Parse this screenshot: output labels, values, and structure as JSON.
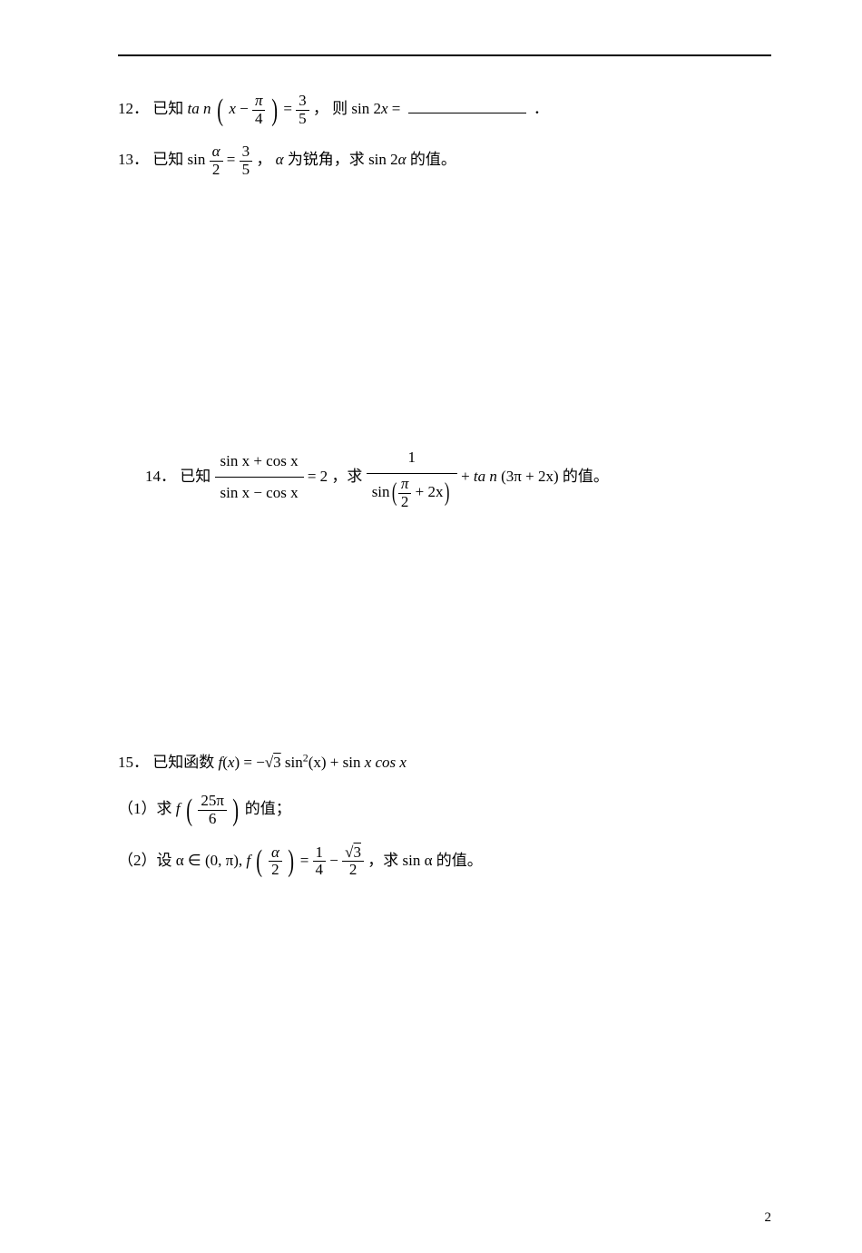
{
  "page": {
    "number": "2",
    "rule_color": "#000000",
    "background": "#ffffff"
  },
  "p12": {
    "num": "12．",
    "known": "已知",
    "tan": "ta n",
    "x": "x",
    "minus": "−",
    "pi": "π",
    "four": "4",
    "eq": "=",
    "three": "3",
    "five": "5",
    "comma": "，",
    "then": "则",
    "sin2x": "sin 2",
    "xv": "x",
    "eq2": "=",
    "period": "．"
  },
  "p13": {
    "num": "13．",
    "known": "已知",
    "sin": "sin",
    "alpha": "α",
    "two": "2",
    "eq": "=",
    "three": "3",
    "five": "5",
    "comma": "，",
    "alpha_is": "α",
    "acute": " 为锐角，求",
    "sin2a": "sin 2",
    "alpha2": "α",
    "value": " 的值。"
  },
  "p14": {
    "num": "14．",
    "known": "已知 ",
    "numr": "sin x + cos x",
    "denr": "sin x − cos x",
    "eq": "= 2 ，求 ",
    "one": "1",
    "sin": "sin",
    "pi": "π",
    "two": "2",
    "plus2x": " + 2x",
    "plus": " + ",
    "tan": "ta n",
    "paren3pi": "(3π + 2x)",
    "value": "的值。"
  },
  "p15": {
    "num": "15．",
    "known": "已知函数 ",
    "f": "f",
    "x": "x",
    "eq": " = −",
    "sqrt3": "3",
    "sin2": " sin",
    "sq": "2",
    "parenx": "(x)",
    "plus": " + sin ",
    "xcosx": "x cos x",
    "part1_label": "（1）求 ",
    "f1": "f",
    "tw5pi": "25π",
    "six": "6",
    "part1_end": "的值；",
    "part2_label": "（2）设 ",
    "alpha_in": "α ∈ (0, π), ",
    "f2": "f",
    "alpha": "α",
    "two": "2",
    "eq2": " = ",
    "one": "1",
    "four": "4",
    "minus": " − ",
    "sqrt3b": "3",
    "twob": "2",
    "part2_end": "，求 sin α 的值。"
  }
}
